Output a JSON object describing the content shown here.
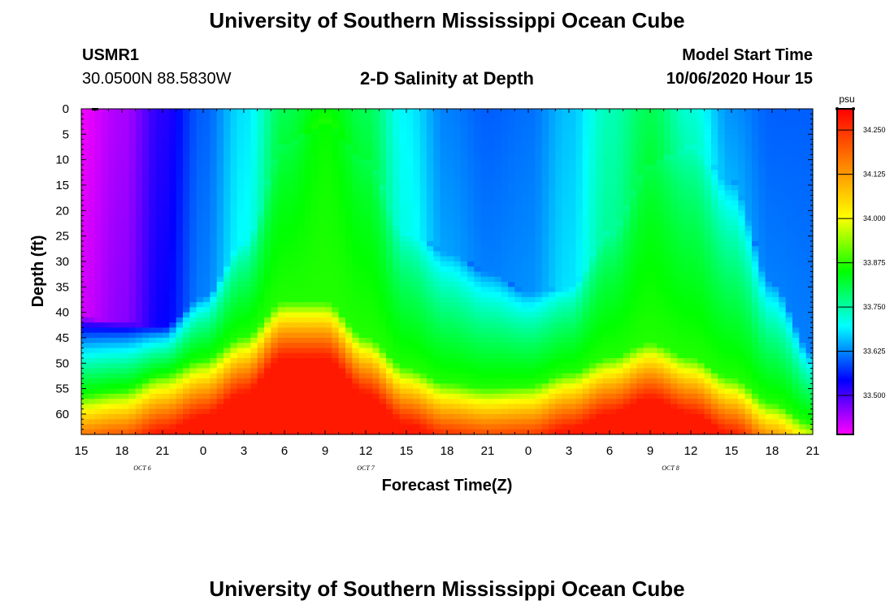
{
  "page": {
    "title_top": "University of Southern Mississippi Ocean Cube",
    "title_bottom": "University of Southern Mississippi Ocean Cube",
    "station_id": "USMR1",
    "station_coords": "30.0500N 88.5830W",
    "plot_title": "2-D Salinity at Depth",
    "model_start_label": "Model Start Time",
    "model_start_value": "10/06/2020 Hour 15"
  },
  "chart_data": {
    "type": "heatmap",
    "title": "2-D Salinity at Depth",
    "xlabel": "Forecast Time(Z)",
    "ylabel": "Depth (ft)",
    "x_range_hours": [
      0,
      54
    ],
    "x_ticks": [
      {
        "h": 0,
        "label": "15"
      },
      {
        "h": 3,
        "label": "18"
      },
      {
        "h": 6,
        "label": "21"
      },
      {
        "h": 9,
        "label": "0"
      },
      {
        "h": 12,
        "label": "3"
      },
      {
        "h": 15,
        "label": "6"
      },
      {
        "h": 18,
        "label": "9"
      },
      {
        "h": 21,
        "label": "12"
      },
      {
        "h": 24,
        "label": "15"
      },
      {
        "h": 27,
        "label": "18"
      },
      {
        "h": 30,
        "label": "21"
      },
      {
        "h": 33,
        "label": "0"
      },
      {
        "h": 36,
        "label": "3"
      },
      {
        "h": 39,
        "label": "6"
      },
      {
        "h": 42,
        "label": "9"
      },
      {
        "h": 45,
        "label": "12"
      },
      {
        "h": 48,
        "label": "15"
      },
      {
        "h": 51,
        "label": "18"
      },
      {
        "h": 54,
        "label": "21"
      }
    ],
    "date_labels": [
      {
        "h": 4.5,
        "label": "OCT 6"
      },
      {
        "h": 21,
        "label": "OCT 7"
      },
      {
        "h": 43.5,
        "label": "OCT 8"
      }
    ],
    "y_range_ft": [
      0,
      64
    ],
    "y_ticks": [
      0,
      5,
      10,
      15,
      20,
      25,
      30,
      35,
      40,
      45,
      50,
      55,
      60
    ],
    "colorbar": {
      "unit": "psu",
      "range": [
        33.39,
        34.31
      ],
      "ticks": [
        "34.250",
        "34.125",
        "34.000",
        "33.875",
        "33.750",
        "33.625",
        "33.500"
      ],
      "tick_values": [
        34.25,
        34.125,
        34.0,
        33.875,
        33.75,
        33.625,
        33.5
      ],
      "colors": [
        "#ff00ff",
        "#0000ff",
        "#00ffff",
        "#00ff00",
        "#ffff00",
        "#ff8000",
        "#ff0000"
      ]
    },
    "fresh_layer_bottom_ft": {
      "hours": [
        0,
        3,
        6,
        9,
        12,
        15,
        18,
        21,
        24,
        27,
        30,
        33,
        36,
        39,
        42,
        45,
        48,
        51,
        54
      ],
      "values": [
        41,
        42,
        43,
        37,
        26,
        7,
        3,
        10,
        24,
        28,
        32,
        36,
        35,
        24,
        11,
        7,
        14,
        34,
        48
      ]
    },
    "halocline_top_ft": {
      "hours": [
        0,
        3,
        6,
        9,
        12,
        15,
        18,
        21,
        24,
        27,
        30,
        33,
        36,
        39,
        42,
        45,
        48,
        51,
        54
      ],
      "values": [
        56.5,
        55.5,
        52.5,
        49.5,
        45,
        38,
        38,
        45,
        51,
        54,
        55,
        54.5,
        52,
        49,
        46,
        49,
        53,
        58,
        62
      ]
    },
    "fresh_core_min_psu": {
      "hours": [
        0,
        3,
        6,
        9,
        12,
        15,
        18,
        21,
        24,
        27,
        30,
        33,
        36,
        39,
        42,
        45,
        48,
        51,
        54
      ],
      "values": [
        33.4,
        33.44,
        33.52,
        33.6,
        33.68,
        33.8,
        33.85,
        33.8,
        33.69,
        33.62,
        33.6,
        33.61,
        33.66,
        33.74,
        33.8,
        33.72,
        33.63,
        33.6,
        33.6
      ]
    }
  }
}
